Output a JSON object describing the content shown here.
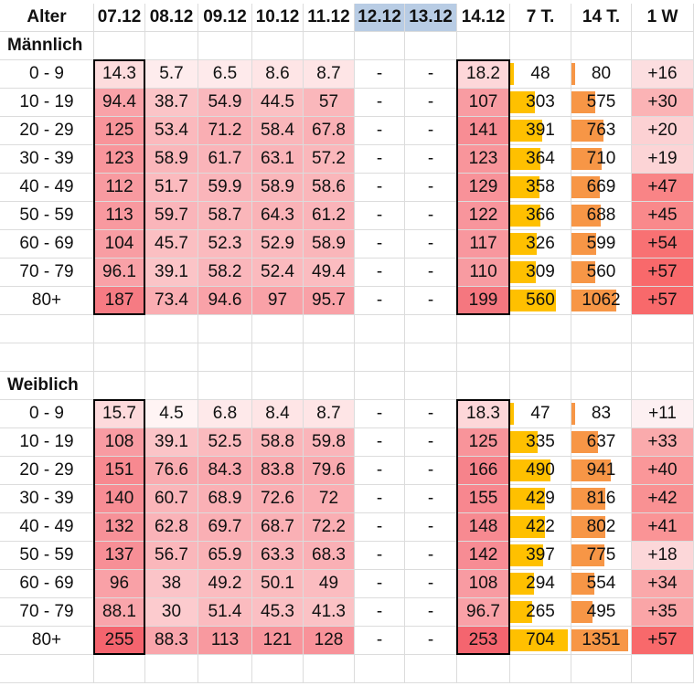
{
  "columns": [
    "Alter",
    "07.12",
    "08.12",
    "09.12",
    "10.12",
    "11.12",
    "12.12",
    "13.12",
    "14.12",
    "7 T.",
    "14 T.",
    "1 W"
  ],
  "weekend_columns": [
    "12.12",
    "13.12"
  ],
  "colors": {
    "weekend_header": "#b8cce4",
    "heat_low": "#fff4f4",
    "heat_high": "#f4646e",
    "bar_7t": "#ffc000",
    "bar_14t": "#f79646",
    "outline": "#000000"
  },
  "sections": [
    {
      "title": "Männlich",
      "rows": [
        [
          "0 - 9",
          "14.3",
          "5.7",
          "6.5",
          "8.6",
          "8.7",
          "-",
          "-",
          "18.2",
          "48",
          "80",
          "+16"
        ],
        [
          "10 - 19",
          "94.4",
          "38.7",
          "54.9",
          "44.5",
          "57",
          "-",
          "-",
          "107",
          "303",
          "575",
          "+30"
        ],
        [
          "20 - 29",
          "125",
          "53.4",
          "71.2",
          "58.4",
          "67.8",
          "-",
          "-",
          "141",
          "391",
          "763",
          "+20"
        ],
        [
          "30 - 39",
          "123",
          "58.9",
          "61.7",
          "63.1",
          "57.2",
          "-",
          "-",
          "123",
          "364",
          "710",
          "+19"
        ],
        [
          "40 - 49",
          "112",
          "51.7",
          "59.9",
          "58.9",
          "58.6",
          "-",
          "-",
          "129",
          "358",
          "669",
          "+47"
        ],
        [
          "50 - 59",
          "113",
          "59.7",
          "58.7",
          "64.3",
          "61.2",
          "-",
          "-",
          "122",
          "366",
          "688",
          "+45"
        ],
        [
          "60 - 69",
          "104",
          "45.7",
          "52.3",
          "52.9",
          "58.9",
          "-",
          "-",
          "117",
          "326",
          "599",
          "+54"
        ],
        [
          "70 - 79",
          "96.1",
          "39.1",
          "58.2",
          "52.4",
          "49.4",
          "-",
          "-",
          "110",
          "309",
          "560",
          "+57"
        ],
        [
          "80+",
          "187",
          "73.4",
          "94.6",
          "97",
          "95.7",
          "-",
          "-",
          "199",
          "560",
          "1062",
          "+57"
        ]
      ]
    },
    {
      "title": "Weiblich",
      "rows": [
        [
          "0 - 9",
          "15.7",
          "4.5",
          "6.8",
          "8.4",
          "8.7",
          "-",
          "-",
          "18.3",
          "47",
          "83",
          "+11"
        ],
        [
          "10 - 19",
          "108",
          "39.1",
          "52.5",
          "58.8",
          "59.8",
          "-",
          "-",
          "125",
          "335",
          "637",
          "+33"
        ],
        [
          "20 - 29",
          "151",
          "76.6",
          "84.3",
          "83.8",
          "79.6",
          "-",
          "-",
          "166",
          "490",
          "941",
          "+40"
        ],
        [
          "30 - 39",
          "140",
          "60.7",
          "68.9",
          "72.6",
          "72",
          "-",
          "-",
          "155",
          "429",
          "816",
          "+42"
        ],
        [
          "40 - 49",
          "132",
          "62.8",
          "69.7",
          "68.7",
          "72.2",
          "-",
          "-",
          "148",
          "422",
          "802",
          "+41"
        ],
        [
          "50 - 59",
          "137",
          "56.7",
          "65.9",
          "63.3",
          "68.3",
          "-",
          "-",
          "142",
          "397",
          "775",
          "+18"
        ],
        [
          "60 - 69",
          "96",
          "38",
          "49.2",
          "50.1",
          "49",
          "-",
          "-",
          "108",
          "294",
          "554",
          "+34"
        ],
        [
          "70 - 79",
          "88.1",
          "30",
          "51.4",
          "45.3",
          "41.3",
          "-",
          "-",
          "96.7",
          "265",
          "495",
          "+35"
        ],
        [
          "80+",
          "255",
          "88.3",
          "113",
          "121",
          "128",
          "-",
          "-",
          "253",
          "704",
          "1351",
          "+57"
        ]
      ]
    }
  ]
}
